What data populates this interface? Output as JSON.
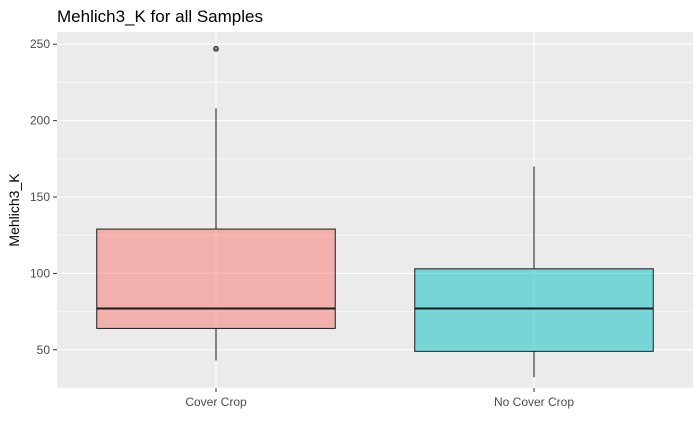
{
  "colors": {
    "panel_background": "#ebebeb",
    "grid": "#ffffff",
    "cover_crop_fill": "#f8766d",
    "no_cover_crop_fill": "#00bfc4",
    "line": "#1a1a1a",
    "outlier": "#1a1a1a"
  },
  "chart_data": {
    "type": "box",
    "title": "Mehlich3_K for all Samples",
    "xlabel": "",
    "ylabel": "Mehlich3_K",
    "ylim": [
      25,
      258
    ],
    "yticks": [
      50,
      100,
      150,
      200,
      250
    ],
    "categories": [
      "Cover Crop",
      "No Cover Crop"
    ],
    "series": [
      {
        "name": "Cover Crop",
        "min": 43,
        "q1": 64,
        "median": 77,
        "q3": 129,
        "max": 208,
        "outliers": [
          247
        ],
        "fill_color": "#f8766d",
        "fill_opacity": 0.5
      },
      {
        "name": "No Cover Crop",
        "min": 32,
        "q1": 49,
        "median": 77,
        "q3": 103,
        "max": 170,
        "outliers": [],
        "fill_color": "#00bfc4",
        "fill_opacity": 0.5
      }
    ]
  }
}
